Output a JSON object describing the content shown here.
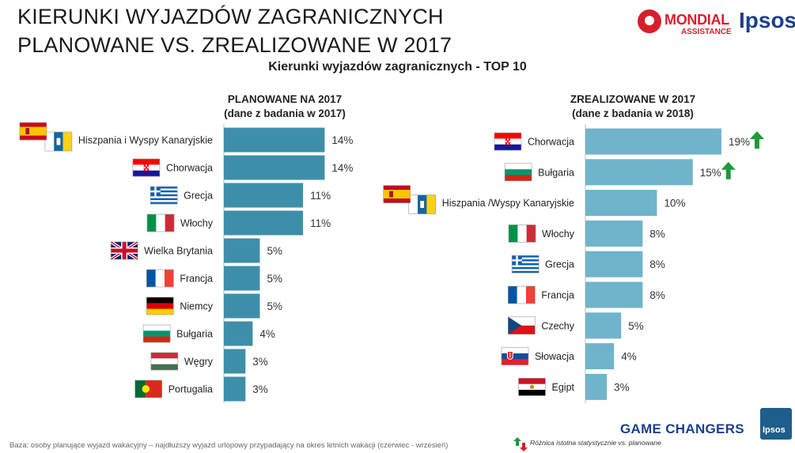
{
  "header": {
    "title_line1": "KIERUNKI WYJAZDÓW ZAGRANICZNYCH",
    "title_line2": "PLANOWANE VS. ZREALIZOWANE W 2017",
    "subtitle": "Kierunki wyjazdów zagranicznych - TOP 10"
  },
  "logos": {
    "mondial_name": "MONDIAL",
    "mondial_sub": "ASSISTANCE",
    "ipsos": "Ipsos",
    "ipsos_badge": "Ipsos"
  },
  "panels": {
    "left": {
      "title_line1": "PLANOWANE NA 2017",
      "title_line2": "(dane z badania w 2017)"
    },
    "right": {
      "title_line1": "ZREALIZOWANE W 2017",
      "title_line2": "(dane z badania w 2018)"
    }
  },
  "colors": {
    "left_bar": "#3d8fa9",
    "right_bar": "#6fb4cb",
    "arrow_up": "#1e9a3a",
    "arrow_down": "#d4202a"
  },
  "chart_data": [
    {
      "type": "bar",
      "orientation": "horizontal",
      "title": "PLANOWANE NA 2017 (dane z badania w 2017)",
      "unit": "%",
      "categories": [
        "Hiszpania i Wyspy Kanaryjskie",
        "Chorwacja",
        "Grecja",
        "Włochy",
        "Wielka Brytania",
        "Francja",
        "Niemcy",
        "Bułgaria",
        "Węgry",
        "Portugalia"
      ],
      "values": [
        14,
        14,
        11,
        11,
        5,
        5,
        5,
        4,
        3,
        3
      ],
      "labels": [
        "14%",
        "14%",
        "11%",
        "11%",
        "5%",
        "5%",
        "5%",
        "4%",
        "3%",
        "3%"
      ],
      "flags": [
        "spain+canary",
        "croatia",
        "greece",
        "italy",
        "uk",
        "france",
        "germany",
        "bulgaria",
        "hungary",
        "portugal"
      ],
      "significant_up": [
        false,
        false,
        false,
        false,
        false,
        false,
        false,
        false,
        false,
        false
      ]
    },
    {
      "type": "bar",
      "orientation": "horizontal",
      "title": "ZREALIZOWANE W 2017 (dane z badania w 2018)",
      "unit": "%",
      "categories": [
        "Chorwacja",
        "Bułgaria",
        "Hiszpania /Wyspy Kanaryjskie",
        "Włochy",
        "Grecja",
        "Francja",
        "Czechy",
        "Słowacja",
        "Egipt"
      ],
      "values": [
        19,
        15,
        10,
        8,
        8,
        8,
        5,
        4,
        3
      ],
      "labels": [
        "19%",
        "15%",
        "10%",
        "8%",
        "8%",
        "8%",
        "5%",
        "4%",
        "3%"
      ],
      "flags": [
        "croatia",
        "bulgaria",
        "spain+canary",
        "italy",
        "greece",
        "france",
        "czech",
        "slovakia",
        "egypt"
      ],
      "significant_up": [
        true,
        true,
        false,
        false,
        false,
        false,
        false,
        false,
        false
      ]
    }
  ],
  "footer": {
    "base_note": "Baza: osoby planujące wyjazd wakacyjny – najdłuższy wyjazd urlopowy przypadający na okres letnich wakacji (czerwiec - wrzesień)",
    "legend_text": "Różnica istotna statystycznie vs. planowane",
    "brand": "GAME CHANGERS"
  }
}
